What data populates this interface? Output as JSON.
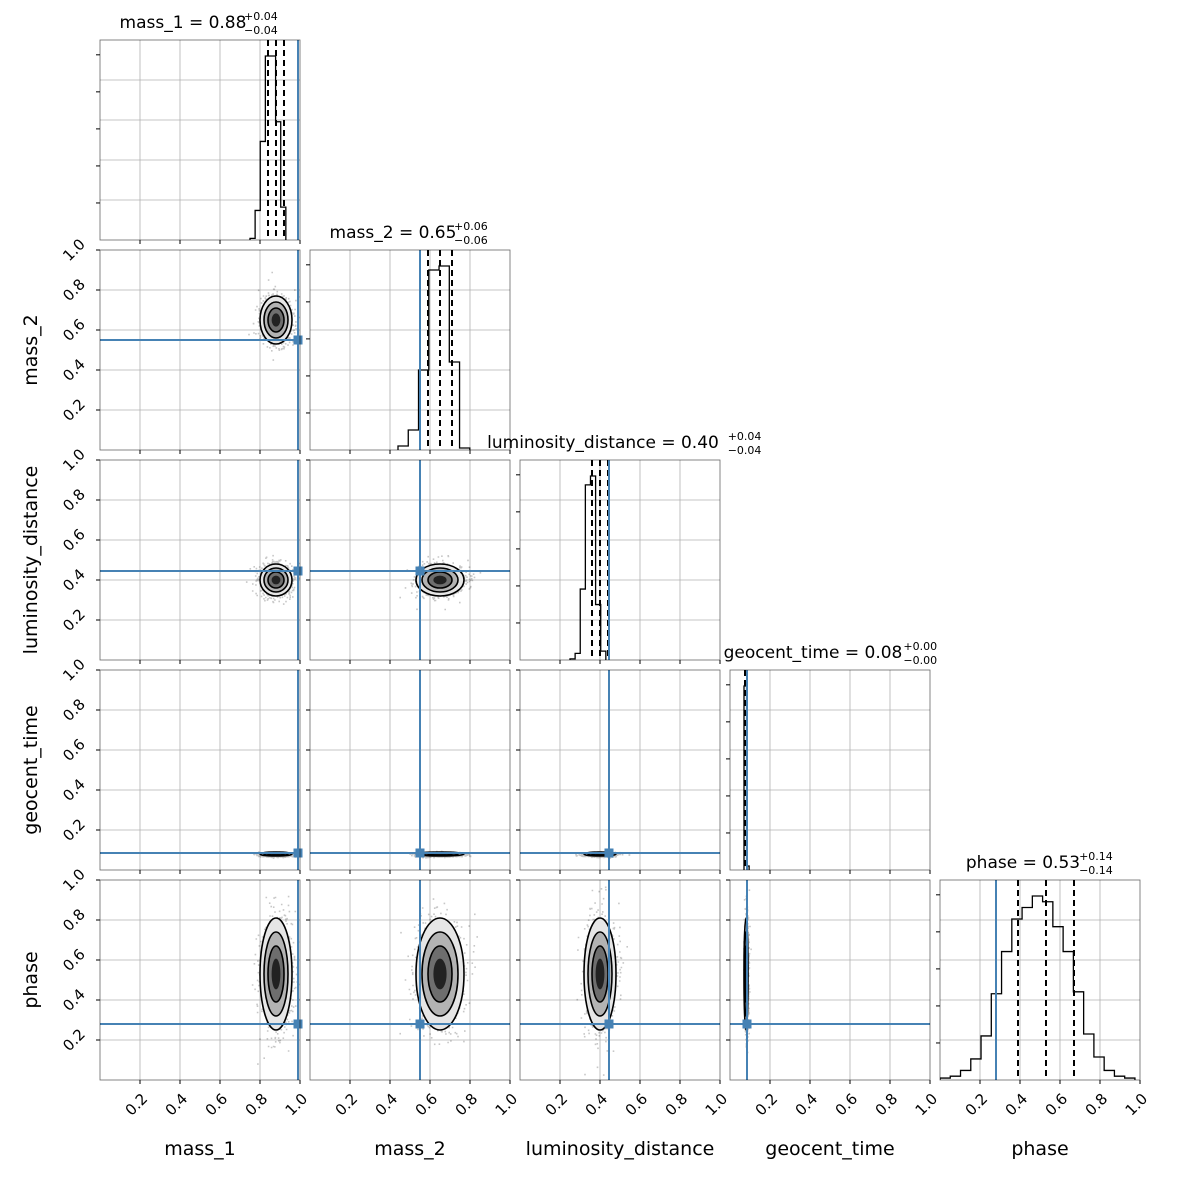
{
  "chart_data": {
    "type": "corner",
    "parameters": [
      "mass_1",
      "mass_2",
      "luminosity_distance",
      "geocent_time",
      "phase"
    ],
    "axis_range": [
      0.0,
      1.0
    ],
    "tick_labels": [
      "0.2",
      "0.4",
      "0.6",
      "0.8",
      "1.0"
    ],
    "grid": true,
    "truth_color": "#4682b4",
    "hist_color": "#000000",
    "truths": {
      "mass_1": 0.99,
      "mass_2": 0.55,
      "luminosity_distance": 0.445,
      "geocent_time": 0.085,
      "phase": 0.28
    },
    "diagonal_titles": [
      {
        "param": "mass_1",
        "label": "mass_1",
        "median": "0.88",
        "plus": "+0.04",
        "minus": "−0.04"
      },
      {
        "param": "mass_2",
        "label": "mass_2",
        "median": "0.65",
        "plus": "+0.06",
        "minus": "−0.06"
      },
      {
        "param": "luminosity_distance",
        "label": "luminosity_distance",
        "median": "0.40",
        "plus": "+0.04",
        "minus": "−0.04"
      },
      {
        "param": "geocent_time",
        "label": "geocent_time",
        "median": "0.08",
        "plus": "+0.00",
        "minus": "−0.00"
      },
      {
        "param": "phase",
        "label": "phase",
        "median": "0.53",
        "plus": "+0.14",
        "minus": "−0.14"
      }
    ],
    "quantile_lines": {
      "mass_1": [
        0.84,
        0.88,
        0.92
      ],
      "mass_2": [
        0.59,
        0.65,
        0.71
      ],
      "luminosity_distance": [
        0.36,
        0.4,
        0.44
      ],
      "geocent_time": [
        0.075,
        0.08,
        0.085
      ],
      "phase": [
        0.39,
        0.53,
        0.67
      ]
    },
    "posteriors": {
      "mass_1": {
        "mean": 0.88,
        "sd": 0.04
      },
      "mass_2": {
        "mean": 0.65,
        "sd": 0.06
      },
      "luminosity_distance": {
        "mean": 0.4,
        "sd": 0.04
      },
      "geocent_time": {
        "mean": 0.08,
        "sd": 0.005
      },
      "phase": {
        "mean": 0.53,
        "sd": 0.14
      }
    },
    "histograms": {
      "mass_1": {
        "bin_start": 0.75,
        "bin_width": 0.0256,
        "counts": [
          0.05,
          0.9,
          3.0,
          5.6,
          5.6,
          3.6,
          1.0
        ]
      },
      "mass_2": {
        "bin_start": 0.44,
        "bin_width": 0.0513,
        "counts": [
          0.1,
          0.5,
          2.0,
          4.5,
          4.6,
          2.2,
          0.05
        ]
      },
      "luminosity_distance": {
        "bin_start": 0.25,
        "bin_width": 0.0256,
        "counts": [
          0.05,
          0.3,
          3.2,
          7.9,
          8.3,
          2.5,
          0.4
        ]
      },
      "geocent_time": {
        "bin_start": 0.07,
        "bin_width": 0.0128,
        "counts": [
          2.3,
          0.05
        ]
      },
      "phase": {
        "bin_start": 0.0,
        "bin_width": 0.0513,
        "counts": [
          0.1,
          0.2,
          0.5,
          1.1,
          2.3,
          4.5,
          6.7,
          8.4,
          9.0,
          9.6,
          9.3,
          8.0,
          6.7,
          4.6,
          2.4,
          1.2,
          0.5,
          0.2,
          0.1
        ]
      }
    }
  }
}
